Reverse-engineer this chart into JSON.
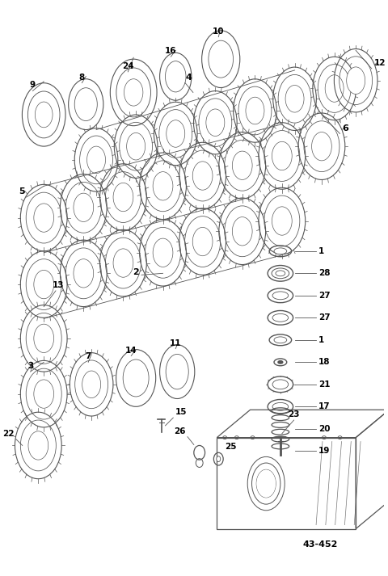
{
  "bg_color": "#ffffff",
  "line_color": "#555555",
  "label_color": "#000000",
  "diagram_code": "43-452",
  "figsize": [
    4.8,
    7.13
  ],
  "dpi": 100
}
